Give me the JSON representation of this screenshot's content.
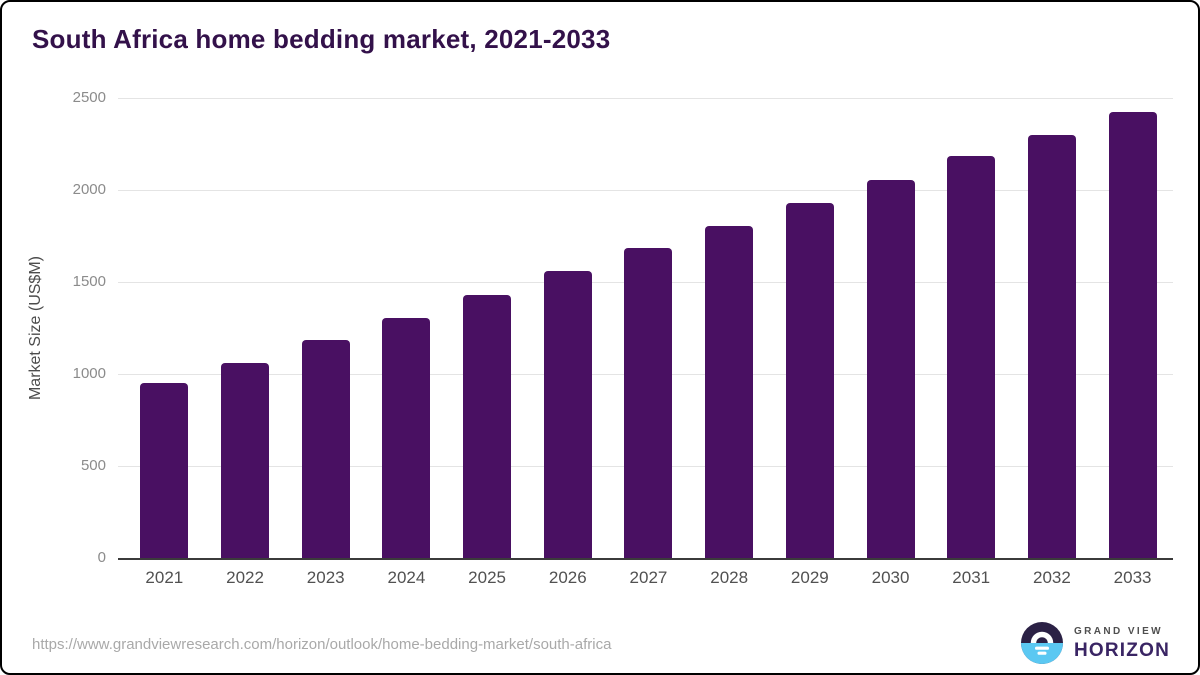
{
  "page": {
    "title": "South Africa home bedding market, 2021-2033"
  },
  "footer": {
    "source_url": "https://www.grandviewresearch.com/horizon/outlook/home-bedding-market/south-africa",
    "brand_top": "GRAND VIEW",
    "brand_bottom": "HORIZON"
  },
  "colors": {
    "bar": "#491062",
    "title": "#33114a",
    "grid": "#e4e4e4",
    "axis": "#3b3b3b",
    "ytick": "#8b8b8b",
    "xtick": "#515151",
    "ylabel": "#4c4c4c",
    "url": "#a9a9a9",
    "logo_dark": "#2b2145",
    "logo_blue": "#5bc8f2",
    "brand_top": "#4f4f4f",
    "brand_bottom": "#3a2564"
  },
  "chart_data": {
    "type": "bar",
    "title": "South Africa home bedding market, 2021-2033",
    "series_name": "Market Size",
    "categories": [
      "2021",
      "2022",
      "2023",
      "2024",
      "2025",
      "2026",
      "2027",
      "2028",
      "2029",
      "2030",
      "2031",
      "2032",
      "2033"
    ],
    "values": [
      950,
      1060,
      1185,
      1305,
      1430,
      1560,
      1685,
      1805,
      1930,
      2055,
      2185,
      2300,
      2425
    ],
    "xlabel": "",
    "ylabel": "Market Size (US$M)",
    "ylim": [
      0,
      2500
    ],
    "yticks": [
      0,
      500,
      1000,
      1500,
      2000,
      2500
    ],
    "grid": true,
    "legend": false,
    "bar_color": "#491062"
  }
}
